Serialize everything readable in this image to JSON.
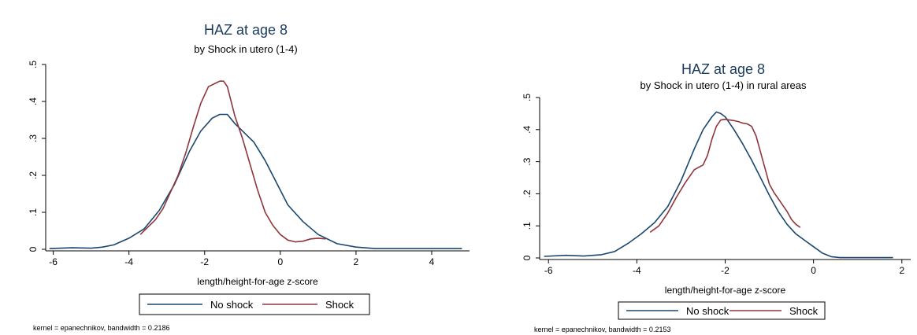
{
  "chart_data": [
    {
      "type": "line",
      "title": "HAZ at age 8",
      "subtitle": "by Shock in utero (1-4)",
      "xlabel": "length/height-for-age z-score",
      "ylabel": "",
      "xlim": [
        -6.2,
        5.0
      ],
      "ylim": [
        0,
        0.5
      ],
      "xticks": [
        -6,
        -4,
        -2,
        0,
        2,
        4
      ],
      "xtick_labels": [
        "-6",
        "-4",
        "-2",
        "0",
        "2",
        "4"
      ],
      "yticks": [
        0,
        0.1,
        0.2,
        0.3,
        0.4,
        0.5
      ],
      "ytick_labels": [
        "0",
        ".1",
        ".2",
        ".3",
        ".4",
        ".5"
      ],
      "grid": false,
      "legend_position": "bottom",
      "note": "kernel = epanechnikov, bandwidth = 0.2186",
      "series": [
        {
          "name": "No shock",
          "color": "#1a476f",
          "x": [
            -6.1,
            -5.5,
            -5.0,
            -4.7,
            -4.4,
            -4.0,
            -3.6,
            -3.2,
            -2.8,
            -2.4,
            -2.1,
            -1.8,
            -1.6,
            -1.4,
            -1.2,
            -1.0,
            -0.7,
            -0.4,
            -0.1,
            0.2,
            0.6,
            1.0,
            1.5,
            2.0,
            2.5,
            3.0,
            4.0,
            4.8
          ],
          "y": [
            0.002,
            0.004,
            0.003,
            0.006,
            0.012,
            0.03,
            0.055,
            0.105,
            0.175,
            0.265,
            0.32,
            0.355,
            0.365,
            0.365,
            0.34,
            0.32,
            0.29,
            0.24,
            0.18,
            0.12,
            0.075,
            0.04,
            0.015,
            0.006,
            0.002,
            0.002,
            0.002,
            0.002
          ]
        },
        {
          "name": "Shock",
          "color": "#90353b",
          "x": [
            -3.7,
            -3.5,
            -3.3,
            -3.1,
            -2.9,
            -2.7,
            -2.5,
            -2.3,
            -2.1,
            -1.9,
            -1.7,
            -1.6,
            -1.5,
            -1.4,
            -1.3,
            -1.2,
            -1.0,
            -0.8,
            -0.6,
            -0.4,
            -0.2,
            0.0,
            0.2,
            0.4,
            0.6,
            0.8,
            1.0,
            1.2
          ],
          "y": [
            0.04,
            0.06,
            0.08,
            0.11,
            0.155,
            0.2,
            0.26,
            0.33,
            0.395,
            0.44,
            0.45,
            0.455,
            0.455,
            0.44,
            0.4,
            0.36,
            0.3,
            0.23,
            0.16,
            0.1,
            0.065,
            0.04,
            0.025,
            0.02,
            0.022,
            0.028,
            0.03,
            0.028
          ]
        }
      ]
    },
    {
      "type": "line",
      "title": "HAZ at age 8",
      "subtitle": "by Shock in utero (1-4) in rural areas",
      "xlabel": "length/height-for-age z-score",
      "ylabel": "",
      "xlim": [
        -6.2,
        2.2
      ],
      "ylim": [
        0,
        0.5
      ],
      "xticks": [
        -6,
        -4,
        -2,
        0,
        2
      ],
      "xtick_labels": [
        "-6",
        "-4",
        "-2",
        "0",
        "2"
      ],
      "yticks": [
        0,
        0.1,
        0.2,
        0.3,
        0.4,
        0.5
      ],
      "ytick_labels": [
        "0",
        ".1",
        ".2",
        ".3",
        ".4",
        ".5"
      ],
      "grid": false,
      "legend_position": "bottom",
      "note": "kernel = epanechnikov, bandwidth = 0.2153",
      "series": [
        {
          "name": "No shock",
          "color": "#1a476f",
          "x": [
            -6.1,
            -5.6,
            -5.2,
            -4.8,
            -4.5,
            -4.2,
            -3.9,
            -3.6,
            -3.3,
            -3.0,
            -2.7,
            -2.5,
            -2.3,
            -2.2,
            -2.1,
            -2.0,
            -1.8,
            -1.6,
            -1.4,
            -1.2,
            -1.0,
            -0.8,
            -0.6,
            -0.4,
            -0.2,
            0.0,
            0.2,
            0.4,
            0.6,
            1.0,
            1.8
          ],
          "y": [
            0.005,
            0.008,
            0.006,
            0.01,
            0.02,
            0.045,
            0.075,
            0.11,
            0.16,
            0.24,
            0.34,
            0.4,
            0.44,
            0.455,
            0.45,
            0.44,
            0.4,
            0.355,
            0.305,
            0.25,
            0.195,
            0.145,
            0.105,
            0.075,
            0.055,
            0.035,
            0.015,
            0.004,
            0.001,
            0.001,
            0.001
          ]
        },
        {
          "name": "Shock",
          "color": "#90353b",
          "x": [
            -3.7,
            -3.5,
            -3.3,
            -3.1,
            -2.9,
            -2.7,
            -2.5,
            -2.4,
            -2.3,
            -2.2,
            -2.1,
            -2.0,
            -1.9,
            -1.8,
            -1.7,
            -1.6,
            -1.5,
            -1.4,
            -1.3,
            -1.2,
            -1.1,
            -1.0,
            -0.9,
            -0.8,
            -0.7,
            -0.6,
            -0.5,
            -0.4,
            -0.3
          ],
          "y": [
            0.08,
            0.1,
            0.14,
            0.19,
            0.235,
            0.275,
            0.29,
            0.32,
            0.37,
            0.41,
            0.43,
            0.432,
            0.43,
            0.428,
            0.425,
            0.42,
            0.418,
            0.41,
            0.38,
            0.33,
            0.28,
            0.23,
            0.205,
            0.185,
            0.165,
            0.145,
            0.12,
            0.105,
            0.095
          ]
        }
      ]
    }
  ]
}
